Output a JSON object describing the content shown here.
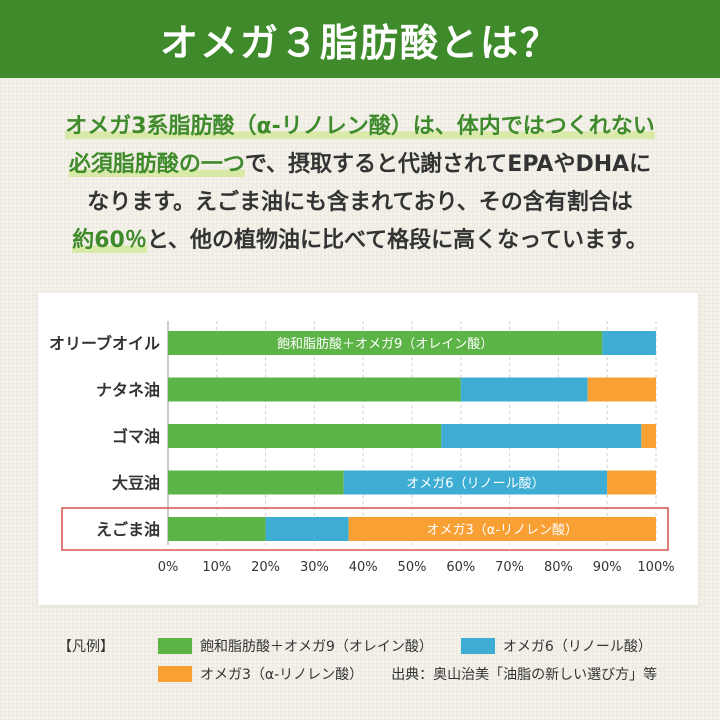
{
  "header": {
    "title": "オメガ３脂肪酸とは？"
  },
  "intro": {
    "line1_hl": "オメガ3系脂肪酸（α-リノレン酸）は、体内ではつくれない",
    "line2_hl": "必須脂肪酸の一つ",
    "line2_rest": "で、摂取すると代謝されてEPAやDHAに",
    "line3": "なります。えごま油にも含まれており、その含有割合は",
    "line4_hl": "約60％",
    "line4_rest": "と、他の植物油に比べて格段に高くなっています。"
  },
  "colors": {
    "green": "#5cb346",
    "blue": "#3eadd4",
    "orange": "#f9a035",
    "highlight_box": "#d9534f",
    "header_bg": "#3f8b2c"
  },
  "chart_data": {
    "type": "bar",
    "orientation": "horizontal",
    "stacked": true,
    "categories": [
      "オリーブオイル",
      "ナタネ油",
      "ゴマ油",
      "大豆油",
      "えごま油"
    ],
    "series": [
      {
        "name": "飽和脂肪酸＋オメガ9（オレイン酸）",
        "color": "#5cb346",
        "values": [
          89,
          60,
          56,
          36,
          20
        ]
      },
      {
        "name": "オメガ6（リノール酸）",
        "color": "#3eadd4",
        "values": [
          11,
          26,
          41,
          54,
          17
        ]
      },
      {
        "name": "オメガ3（α-リノレン酸）",
        "color": "#f9a035",
        "values": [
          0,
          14,
          3,
          10,
          63
        ]
      }
    ],
    "xlim": [
      0,
      100
    ],
    "xticks": [
      "0%",
      "10%",
      "20%",
      "30%",
      "40%",
      "50%",
      "60%",
      "70%",
      "80%",
      "90%",
      "100%"
    ],
    "grid": true,
    "highlighted_category": "えごま油",
    "bar_labels": [
      {
        "category": "オリーブオイル",
        "series": 0,
        "text": "飽和脂肪酸＋オメガ9（オレイン酸）"
      },
      {
        "category": "大豆油",
        "series": 1,
        "text": "オメガ6（リノール酸）"
      },
      {
        "category": "えごま油",
        "series": 2,
        "text": "オメガ3（α-リノレン酸）"
      }
    ]
  },
  "legend": {
    "heading": "【凡例】",
    "items": [
      {
        "label": "飽和脂肪酸＋オメガ9（オレイン酸）",
        "color": "#5cb346"
      },
      {
        "label": "オメガ6（リノール酸）",
        "color": "#3eadd4"
      },
      {
        "label": "オメガ3（α-リノレン酸）",
        "color": "#f9a035"
      }
    ],
    "source": "出典：奥山治美「油脂の新しい選び方」等"
  }
}
